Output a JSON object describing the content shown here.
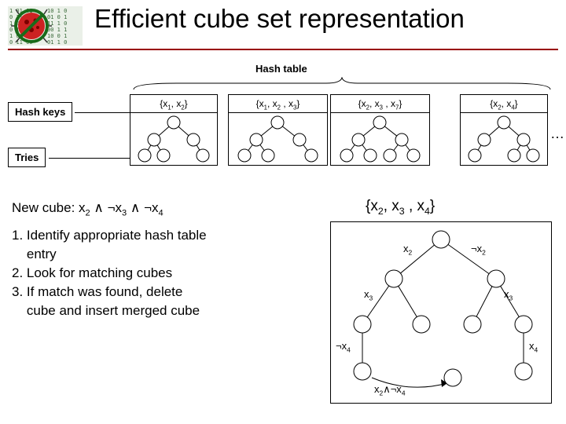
{
  "title": "Efficient cube set representation",
  "colors": {
    "underline": "#990000",
    "text": "#000000",
    "bg": "#ffffff",
    "node_stroke": "#000000",
    "logo_red": "#cc0000",
    "logo_green": "#2a7a2a",
    "logo_code": "#3a6a3a"
  },
  "hash_table_label": "Hash table",
  "hash_keys_label": "Hash keys",
  "tries_label": "Tries",
  "ellipsis": "…",
  "buckets": [
    {
      "set_html": "{x<sub>1</sub>, x<sub>2</sub>}"
    },
    {
      "set_html": "{x<sub>1</sub>, x<sub>2</sub> , x<sub>3</sub>}"
    },
    {
      "set_html": "{x<sub>2</sub>, x<sub>3</sub> , x<sub>7</sub>}"
    },
    {
      "set_html": "{x<sub>2</sub>, x<sub>4</sub>}"
    }
  ],
  "new_cube_label_html": "New cube: x<sub>2</sub> ∧ ¬x<sub>3</sub> ∧ ¬x<sub>4</sub>",
  "steps": [
    "1. Identify appropriate hash table",
    "    entry",
    "2. Look for matching cubes",
    "3. If match was found, delete",
    "    cube and insert merged cube"
  ],
  "big_set_html": "{x<sub>2</sub>, x<sub>3</sub> , x<sub>4</sub>}",
  "detail_tree": {
    "labels": {
      "root_left": "x<sub>2</sub>",
      "root_right": "¬x<sub>2</sub>",
      "l2_left": "x<sub>3</sub>",
      "l2_rightA": "x<sub>3</sub>",
      "l3_left": "¬x<sub>4</sub>",
      "l3_right": "x<sub>4</sub>",
      "merged": "x<sub>2</sub>∧¬x<sub>4</sub>"
    }
  },
  "layout": {
    "title_fontsize": 33,
    "body_fontsize": 17,
    "bucket_fontsize": 12,
    "label_fontsize": 13,
    "node_radius": 11
  }
}
